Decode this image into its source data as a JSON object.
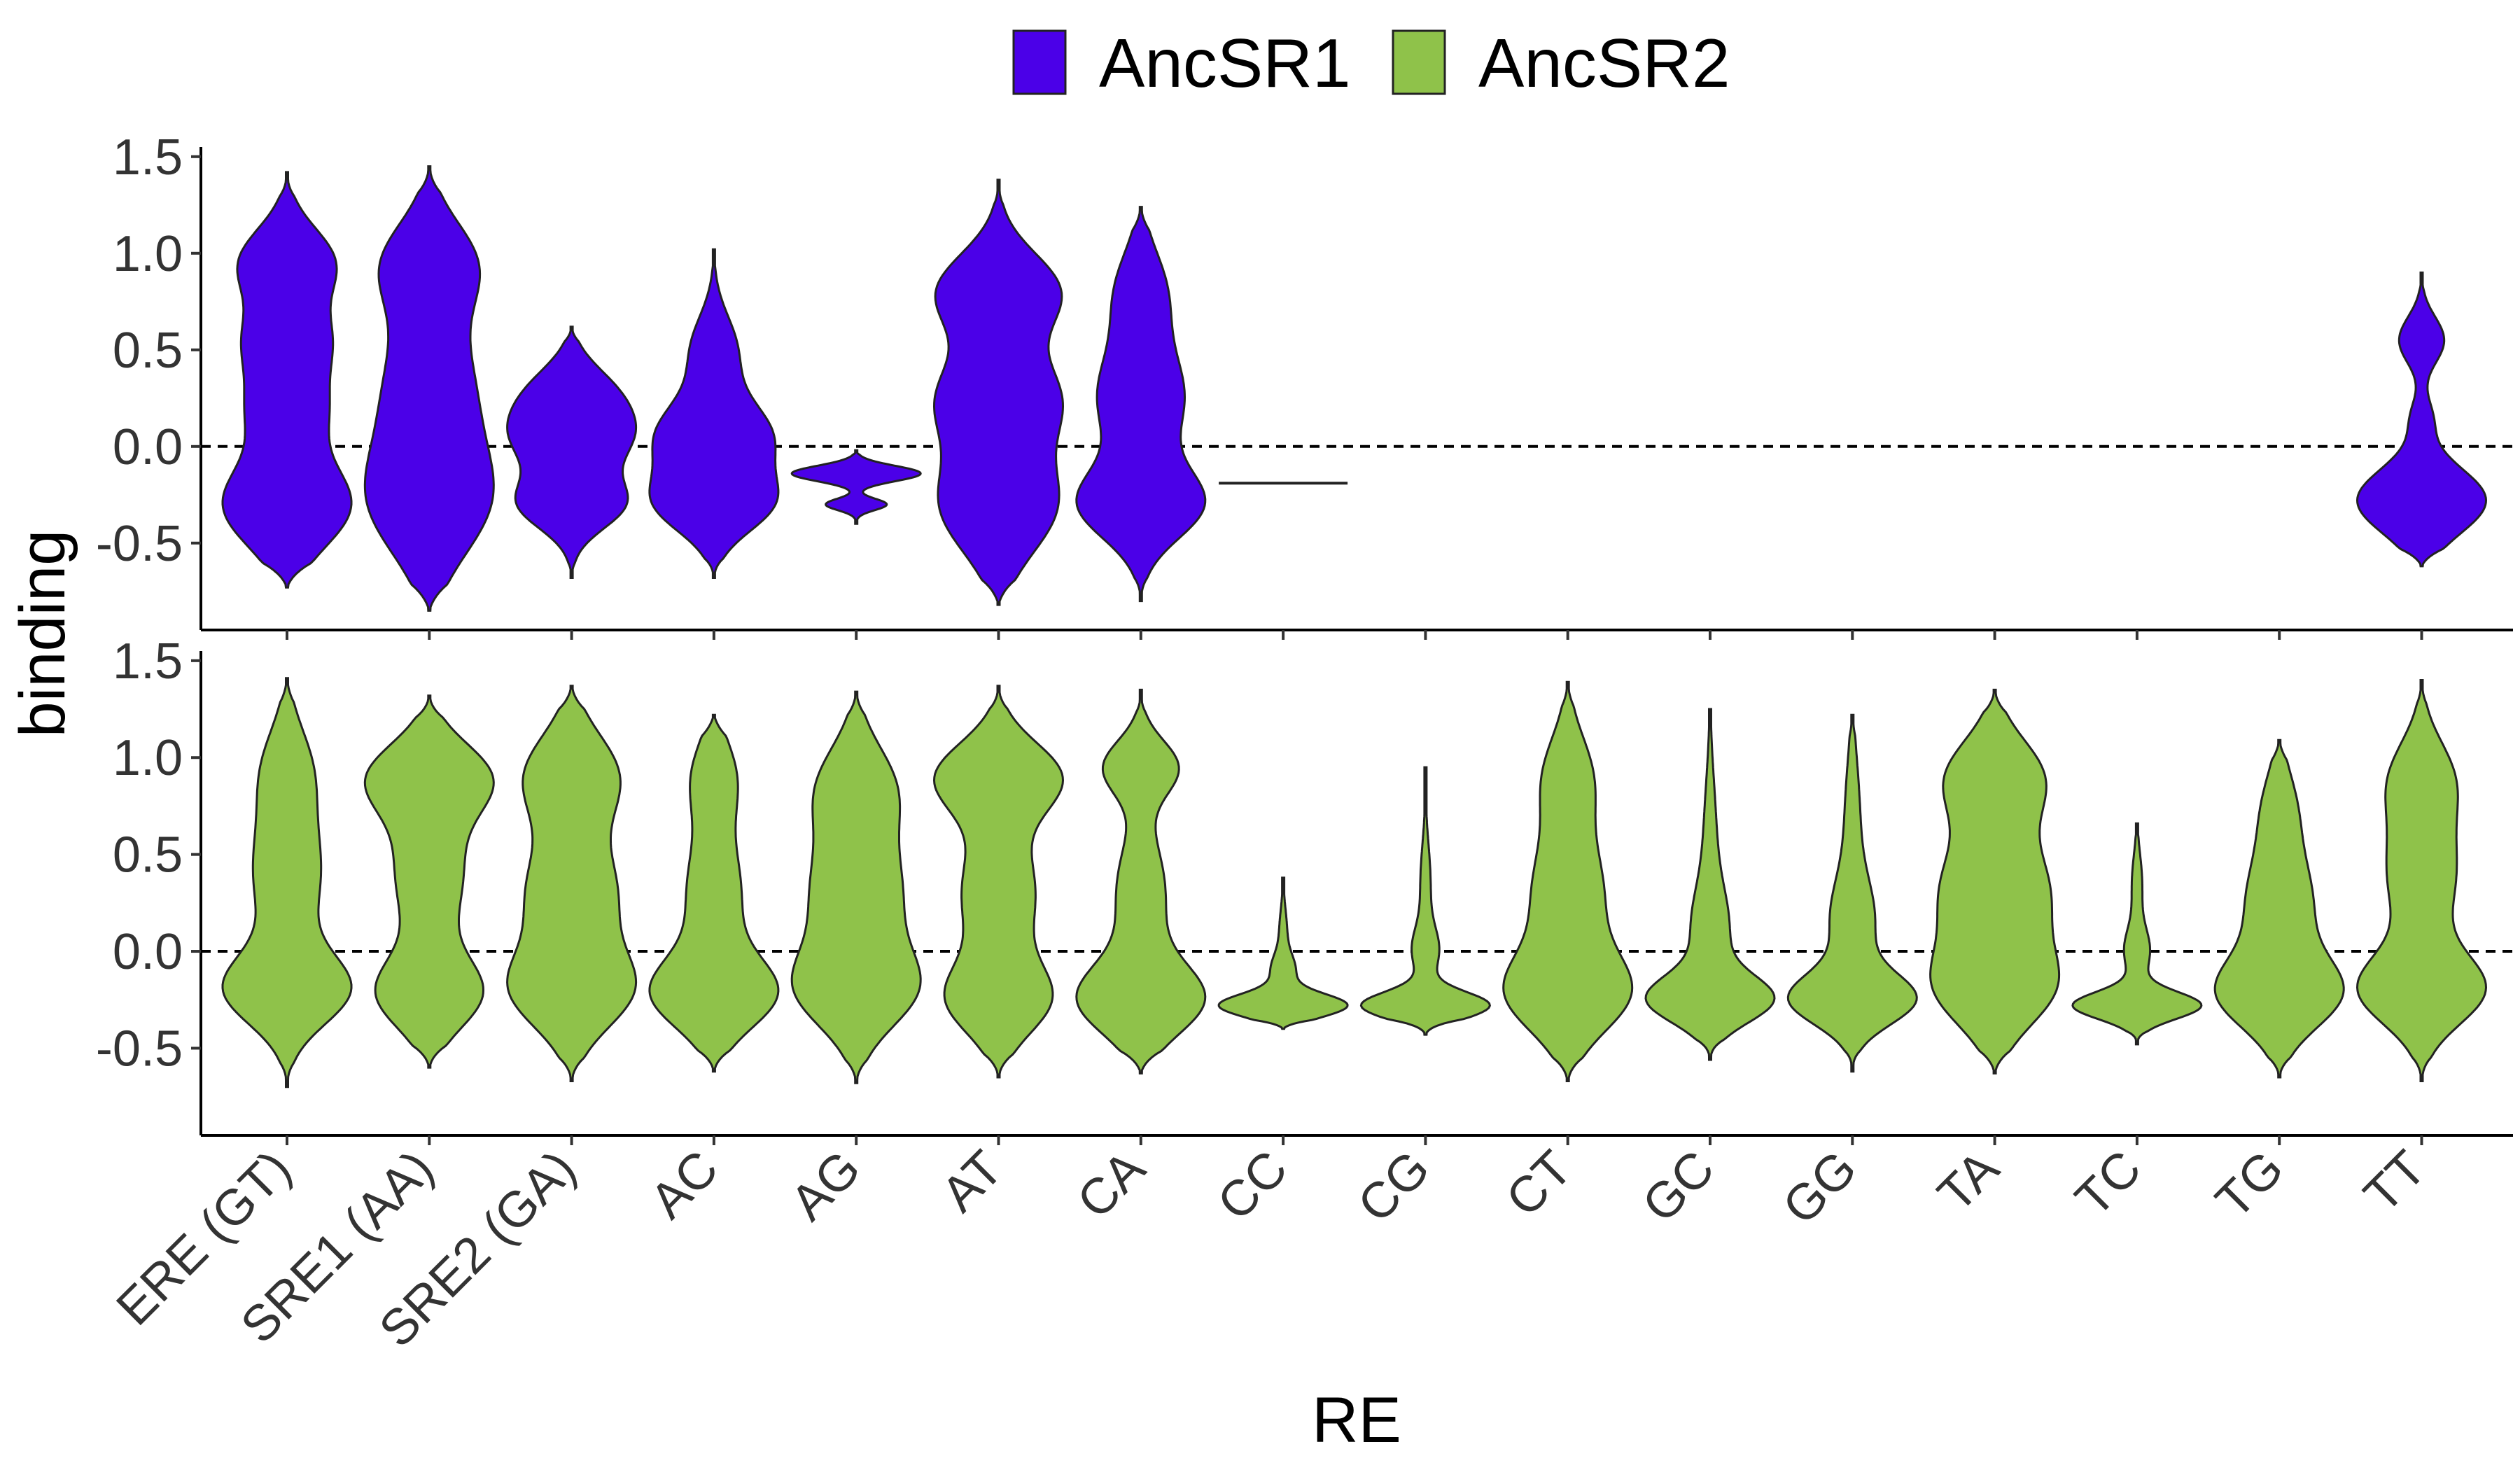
{
  "chart_data": {
    "type": "violin",
    "xlabel": "RE",
    "ylabel": "binding",
    "ylim": [
      -0.95,
      1.55
    ],
    "yticks": [
      -0.5,
      0.0,
      0.5,
      1.0,
      1.5
    ],
    "ytick_labels": [
      "-0.5",
      "0.0",
      "0.5",
      "1.0",
      "1.5"
    ],
    "reference_line": 0,
    "categories": [
      "ERE (GT)",
      "SRE1 (AA)",
      "SRE2 (GA)",
      "AC",
      "AG",
      "AT",
      "CA",
      "CC",
      "CG",
      "CT",
      "GC",
      "GG",
      "TA",
      "TC",
      "TG",
      "TT"
    ],
    "legend": {
      "position": "top",
      "entries": [
        "AncSR1",
        "AncSR2"
      ]
    },
    "series": [
      {
        "name": "AncSR1",
        "color": "#4B00E8",
        "violins": [
          {
            "category": "ERE (GT)",
            "min": -0.73,
            "max": 1.42,
            "modes": [
              [
                -0.3,
                0.95,
                0.22
              ],
              [
                0.2,
                0.5,
                0.18
              ],
              [
                0.55,
                0.55,
                0.17
              ],
              [
                0.95,
                0.7,
                0.18
              ]
            ]
          },
          {
            "category": "SRE1 (AA)",
            "min": -0.85,
            "max": 1.45,
            "modes": [
              [
                -0.3,
                1.0,
                0.28
              ],
              [
                0.3,
                0.8,
                0.35
              ],
              [
                0.95,
                0.8,
                0.22
              ]
            ]
          },
          {
            "category": "SRE2 (GA)",
            "min": -0.68,
            "max": 0.62,
            "modes": [
              [
                -0.3,
                0.9,
                0.13
              ],
              [
                0.05,
                1.0,
                0.16
              ],
              [
                0.3,
                0.55,
                0.14
              ]
            ]
          },
          {
            "category": "AC",
            "min": -0.68,
            "max": 1.02,
            "modes": [
              [
                -0.3,
                0.95,
                0.15
              ],
              [
                0.05,
                1.0,
                0.18
              ],
              [
                0.5,
                0.4,
                0.18
              ]
            ]
          },
          {
            "category": "AG",
            "min": -0.4,
            "max": -0.02,
            "modes": [
              [
                -0.14,
                0.95,
                0.04
              ],
              [
                -0.3,
                0.45,
                0.03
              ]
            ]
          },
          {
            "category": "AT",
            "min": -0.82,
            "max": 1.38,
            "modes": [
              [
                -0.3,
                0.95,
                0.25
              ],
              [
                0.25,
                0.95,
                0.22
              ],
              [
                0.8,
                1.0,
                0.2
              ]
            ]
          },
          {
            "category": "CA",
            "min": -0.8,
            "max": 1.24,
            "modes": [
              [
                -0.3,
                1.0,
                0.18
              ],
              [
                0.25,
                0.7,
                0.25
              ],
              [
                0.8,
                0.4,
                0.22
              ]
            ]
          },
          {
            "category": "CC",
            "min": -0.19,
            "max": -0.19,
            "modes": []
          },
          {
            "category": "TT",
            "min": -0.62,
            "max": 0.9,
            "modes": [
              [
                -0.28,
                1.0,
                0.17
              ],
              [
                0.55,
                0.35,
                0.12
              ],
              [
                0.15,
                0.15,
                0.1
              ]
            ]
          }
        ]
      },
      {
        "name": "AncSR2",
        "color": "#8FC24A",
        "violins": [
          {
            "category": "ERE (GT)",
            "min": -0.7,
            "max": 1.41,
            "modes": [
              [
                -0.2,
                1.0,
                0.18
              ],
              [
                0.4,
                0.55,
                0.3
              ],
              [
                0.95,
                0.35,
                0.22
              ]
            ]
          },
          {
            "category": "SRE1 (AA)",
            "min": -0.6,
            "max": 1.32,
            "modes": [
              [
                -0.22,
                0.9,
                0.18
              ],
              [
                0.4,
                0.6,
                0.3
              ],
              [
                0.9,
                1.0,
                0.18
              ]
            ]
          },
          {
            "category": "SRE2 (GA)",
            "min": -0.67,
            "max": 1.37,
            "modes": [
              [
                -0.2,
                1.0,
                0.2
              ],
              [
                0.3,
                0.75,
                0.25
              ],
              [
                0.9,
                0.8,
                0.22
              ]
            ]
          },
          {
            "category": "AC",
            "min": -0.62,
            "max": 1.22,
            "modes": [
              [
                -0.22,
                1.0,
                0.18
              ],
              [
                0.3,
                0.45,
                0.28
              ],
              [
                0.9,
                0.35,
                0.2
              ]
            ]
          },
          {
            "category": "AG",
            "min": -0.68,
            "max": 1.34,
            "modes": [
              [
                -0.2,
                1.0,
                0.2
              ],
              [
                0.3,
                0.8,
                0.28
              ],
              [
                0.85,
                0.65,
                0.22
              ]
            ]
          },
          {
            "category": "AT",
            "min": -0.65,
            "max": 1.37,
            "modes": [
              [
                -0.25,
                0.8,
                0.18
              ],
              [
                0.3,
                0.6,
                0.28
              ],
              [
                0.9,
                1.0,
                0.18
              ]
            ]
          },
          {
            "category": "CA",
            "min": -0.63,
            "max": 1.35,
            "modes": [
              [
                -0.25,
                1.0,
                0.18
              ],
              [
                0.3,
                0.4,
                0.28
              ],
              [
                0.95,
                0.6,
                0.14
              ]
            ]
          },
          {
            "category": "CC",
            "min": -0.4,
            "max": 0.38,
            "modes": [
              [
                -0.28,
                1.0,
                0.06
              ],
              [
                -0.1,
                0.18,
                0.08
              ],
              [
                0.1,
                0.06,
                0.12
              ]
            ]
          },
          {
            "category": "CG",
            "min": -0.43,
            "max": 0.95,
            "modes": [
              [
                -0.28,
                1.0,
                0.07
              ],
              [
                0.0,
                0.2,
                0.12
              ],
              [
                0.35,
                0.08,
                0.2
              ]
            ]
          },
          {
            "category": "CT",
            "min": -0.67,
            "max": 1.39,
            "modes": [
              [
                -0.22,
                1.0,
                0.2
              ],
              [
                0.3,
                0.6,
                0.28
              ],
              [
                0.9,
                0.4,
                0.22
              ]
            ]
          },
          {
            "category": "GC",
            "min": -0.56,
            "max": 1.25,
            "modes": [
              [
                -0.25,
                1.0,
                0.12
              ],
              [
                0.1,
                0.3,
                0.22
              ],
              [
                0.6,
                0.1,
                0.3
              ]
            ]
          },
          {
            "category": "GG",
            "min": -0.62,
            "max": 1.22,
            "modes": [
              [
                -0.25,
                1.0,
                0.13
              ],
              [
                0.15,
                0.35,
                0.22
              ],
              [
                0.7,
                0.12,
                0.3
              ]
            ]
          },
          {
            "category": "TA",
            "min": -0.63,
            "max": 1.35,
            "modes": [
              [
                -0.2,
                0.9,
                0.2
              ],
              [
                0.3,
                0.95,
                0.28
              ],
              [
                0.9,
                0.8,
                0.2
              ]
            ]
          },
          {
            "category": "TC",
            "min": -0.48,
            "max": 0.66,
            "modes": [
              [
                -0.28,
                1.0,
                0.07
              ],
              [
                0.0,
                0.2,
                0.12
              ],
              [
                0.35,
                0.08,
                0.15
              ]
            ]
          },
          {
            "category": "TG",
            "min": -0.65,
            "max": 1.09,
            "modes": [
              [
                -0.22,
                1.0,
                0.18
              ],
              [
                0.25,
                0.55,
                0.25
              ],
              [
                0.75,
                0.25,
                0.2
              ]
            ]
          },
          {
            "category": "TT",
            "min": -0.67,
            "max": 1.4,
            "modes": [
              [
                -0.2,
                1.0,
                0.18
              ],
              [
                0.4,
                0.55,
                0.28
              ],
              [
                0.9,
                0.45,
                0.2
              ]
            ]
          }
        ]
      }
    ]
  }
}
